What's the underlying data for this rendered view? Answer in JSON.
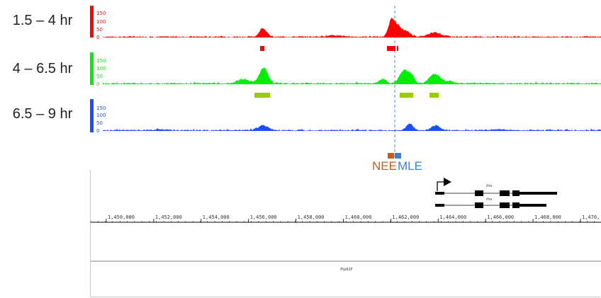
{
  "colors": {
    "track0": "#ff0000",
    "track1": "#00ee00",
    "track2": "#1a4fff",
    "peaks1": "#99cc00",
    "nee": "#cc5a1a",
    "mle": "#3a7fc8",
    "dashed": "#4a8fc0",
    "gene": "#000000"
  },
  "tracks": [
    {
      "label": "1.5 – 4 hr",
      "scale": [
        "150",
        "100",
        "50",
        "0"
      ]
    },
    {
      "label": "4 – 6.5 hr",
      "scale": [
        "150",
        "100",
        "50",
        "0"
      ]
    },
    {
      "label": "6.5 – 9 hr",
      "scale": [
        "150",
        "100",
        "50",
        "0"
      ]
    }
  ],
  "motifs": {
    "nee": "NEE",
    "mle": "MLE"
  },
  "genes": {
    "transcript1": "rho",
    "transcript2": "rho",
    "lower": "Ptp61F"
  },
  "ruler": {
    "ticks": [
      "1,450,000",
      "1,452,000",
      "1,454,000",
      "1,456,000",
      "1,458,000",
      "1,460,000",
      "1,462,000",
      "1,464,000",
      "1,466,000",
      "1,468,000",
      "1,470,"
    ]
  }
}
